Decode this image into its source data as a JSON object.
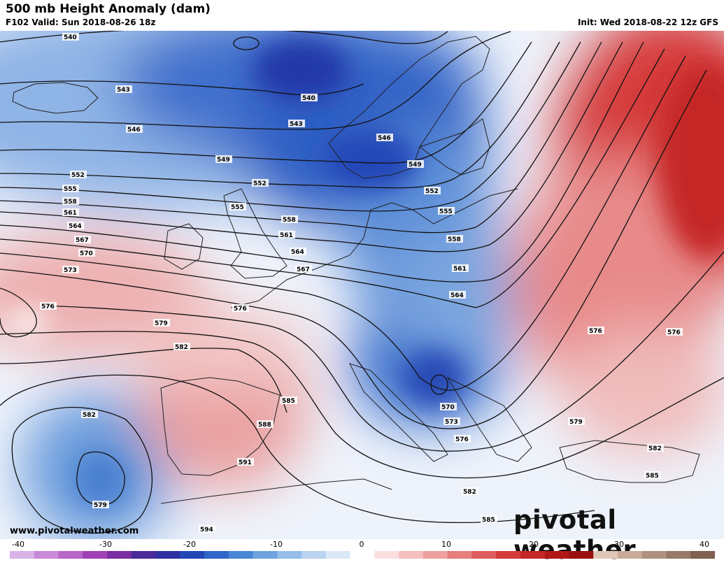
{
  "header": {
    "title": "500 mb Height Anomaly (dam)",
    "valid": "F102 Valid: Sun 2018-08-26 18z",
    "init": "Init: Wed 2018-08-22 12z GFS"
  },
  "footer": {
    "website": "www.pivotalweather.com",
    "brand": "pivotal weather"
  },
  "colorbar": {
    "ticks": [
      "-40",
      "-30",
      "-20",
      "-10",
      "0",
      "10",
      "20",
      "30",
      "40"
    ],
    "colors": [
      "#d9b3e8",
      "#c98ad9",
      "#b865c8",
      "#a040b5",
      "#7a2ea3",
      "#4b2a9a",
      "#2f2fa0",
      "#2346b5",
      "#2f66c8",
      "#4a86d6",
      "#6fa3df",
      "#95bde8",
      "#bad3f0",
      "#dbe8f7",
      "#ffffff",
      "#fbdede",
      "#f5c0c0",
      "#eea0a0",
      "#e67e7e",
      "#de5c5c",
      "#d43c3c",
      "#c52626",
      "#b01818",
      "#9a1010",
      "#e0c8b8",
      "#c8aa98",
      "#b09080",
      "#987868",
      "#806050"
    ]
  },
  "contour_labels": [
    "540",
    "543",
    "546",
    "549",
    "552",
    "555",
    "558",
    "561",
    "564",
    "567",
    "570",
    "573",
    "576",
    "579",
    "582",
    "585",
    "588",
    "591",
    "594"
  ],
  "map": {
    "anomaly_colors": {
      "strong_negative": "#2346b5",
      "negative": "#6fa3df",
      "weak_negative": "#bad3f0",
      "neutral": "#ffffff",
      "weak_positive": "#f5c0c0",
      "positive": "#e67e7e",
      "strong_positive": "#c52626"
    }
  }
}
